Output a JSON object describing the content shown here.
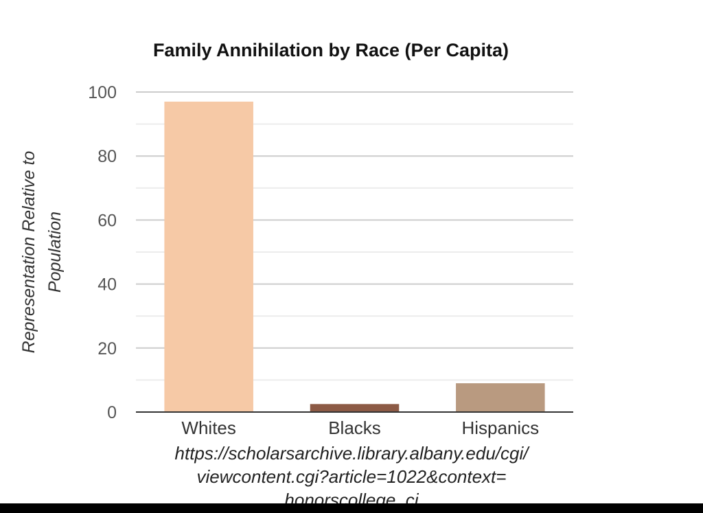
{
  "chart_data": {
    "type": "bar",
    "title": "Family Annihilation by Race (Per Capita)",
    "xlabel": "",
    "ylabel_lines": [
      "Representation Relative to",
      "Population"
    ],
    "categories": [
      "Whites",
      "Blacks",
      "Hispanics"
    ],
    "values": [
      97,
      2.5,
      9
    ],
    "bar_colors": [
      "#f6c9a6",
      "#8c5a45",
      "#b99a80"
    ],
    "ylim": [
      0,
      100
    ],
    "yticks": [
      0,
      20,
      40,
      60,
      80,
      100
    ],
    "minor_grid_step": 10,
    "grid": true,
    "legend": "none"
  },
  "caption": {
    "lines": [
      "https://scholarsarchive.library.albany.edu/cgi/",
      "viewcontent.cgi?article=1022&context=",
      "honorscollege_cj"
    ]
  },
  "colors": {
    "major_grid": "#cccccc",
    "minor_grid": "#ececec",
    "axis": "#333333"
  }
}
